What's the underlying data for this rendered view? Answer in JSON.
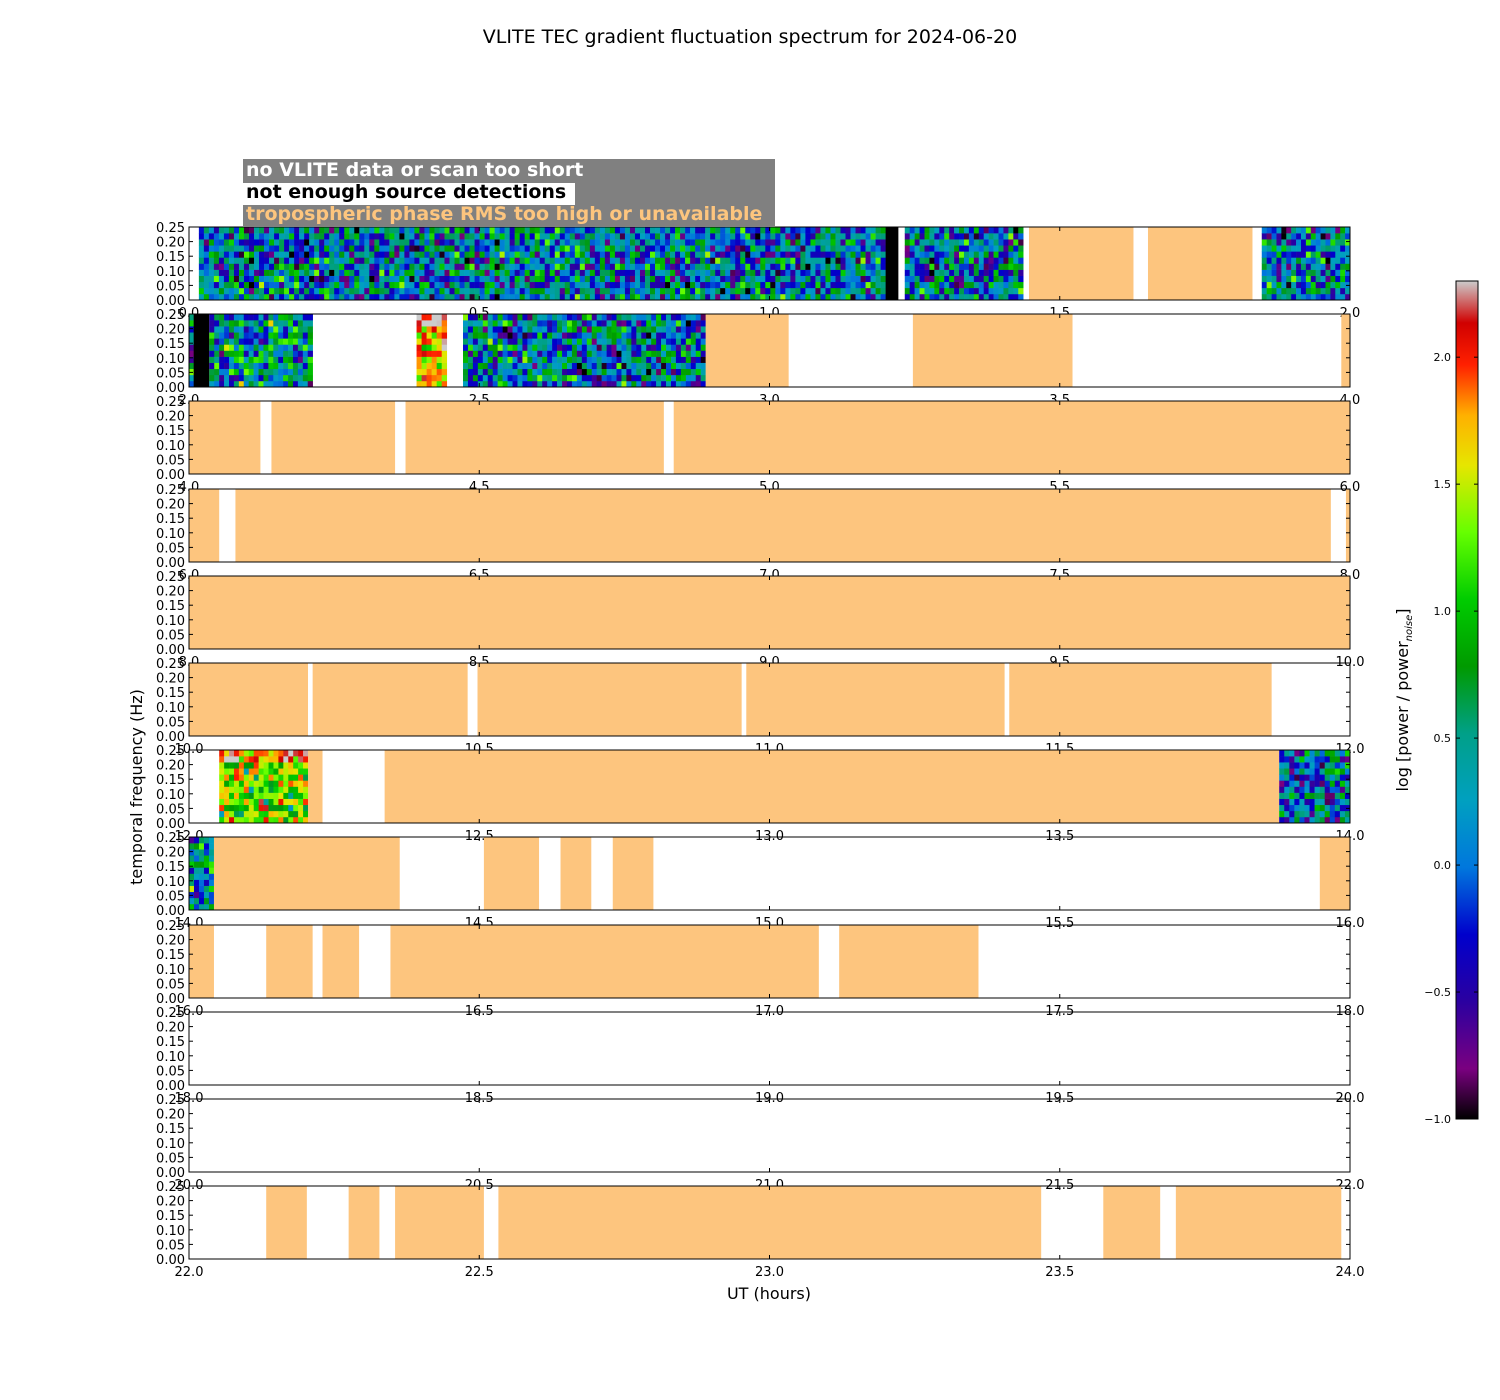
{
  "chart_data": {
    "type": "heatmap",
    "title": "VLITE TEC gradient fluctuation spectrum for 2024-06-20",
    "xlabel": "UT (hours)",
    "ylabel": "temporal frequency (Hz)",
    "ylim": [
      0,
      0.25
    ],
    "y_ticks": [
      "0.00",
      "0.05",
      "0.10",
      "0.15",
      "0.20",
      "0.25"
    ],
    "legend": {
      "placement": "top-left",
      "entries": [
        {
          "label": "no VLITE data or scan too short",
          "color": "#808080",
          "text_color": "#ffffff"
        },
        {
          "label": "not enough source detections",
          "color": "#000000",
          "text_color": "#000000"
        },
        {
          "label": "tropospheric phase RMS too high or unavailable",
          "color": "#fdc57e",
          "text_color": "#fdc57e"
        }
      ]
    },
    "colorbar": {
      "label": "log [power / power",
      "label_sub": "noise",
      "label_close": "]",
      "range": [
        -1.0,
        2.3
      ],
      "tick_values": [
        -1.0,
        -0.5,
        0.0,
        0.5,
        1.0,
        1.5,
        2.0
      ],
      "tick_labels": [
        "−1.0",
        "−0.5",
        "0.0",
        "0.5",
        "1.0",
        "1.5",
        "2.0"
      ],
      "colormap": "nipy_spectral"
    },
    "colors": {
      "tropo": "#fdc57e",
      "detections": "#000000",
      "nodata": "#ffffff"
    },
    "panels": [
      {
        "xlim": [
          0,
          2
        ],
        "xticks": [
          "0.0",
          "0.5",
          "1.0",
          "1.5",
          "2.0"
        ],
        "segments": [
          {
            "start": 0.017,
            "end": 1.2,
            "kind": "data",
            "level": 0.0
          },
          {
            "start": 1.2,
            "end": 1.222,
            "kind": "detections"
          },
          {
            "start": 1.233,
            "end": 1.437,
            "kind": "data",
            "level": 0.0
          },
          {
            "start": 1.447,
            "end": 1.627,
            "kind": "tropo"
          },
          {
            "start": 1.652,
            "end": 1.832,
            "kind": "tropo"
          },
          {
            "start": 1.848,
            "end": 2.0,
            "kind": "data",
            "level": 0.0
          }
        ]
      },
      {
        "xlim": [
          2,
          4
        ],
        "xticks": [
          "2.0",
          "2.5",
          "3.0",
          "3.5",
          "4.0"
        ],
        "segments": [
          {
            "start": 2.0,
            "end": 2.008,
            "kind": "data",
            "level": 0.0
          },
          {
            "start": 2.008,
            "end": 2.035,
            "kind": "detections"
          },
          {
            "start": 2.035,
            "end": 2.213,
            "kind": "data",
            "level": 0.25
          },
          {
            "start": 2.392,
            "end": 2.444,
            "kind": "data",
            "level": 1.4
          },
          {
            "start": 2.472,
            "end": 2.89,
            "kind": "data",
            "level": 0.0
          },
          {
            "start": 2.89,
            "end": 3.033,
            "kind": "tropo"
          },
          {
            "start": 3.247,
            "end": 3.522,
            "kind": "tropo"
          },
          {
            "start": 3.985,
            "end": 4.0,
            "kind": "tropo"
          }
        ]
      },
      {
        "xlim": [
          4,
          6
        ],
        "xticks": [
          "4.0",
          "4.5",
          "5.0",
          "5.5",
          "6.0"
        ],
        "segments": [
          {
            "start": 4.0,
            "end": 4.123,
            "kind": "tropo"
          },
          {
            "start": 4.142,
            "end": 4.355,
            "kind": "tropo"
          },
          {
            "start": 4.373,
            "end": 4.818,
            "kind": "tropo"
          },
          {
            "start": 4.835,
            "end": 6.0,
            "kind": "tropo"
          }
        ]
      },
      {
        "xlim": [
          6,
          8
        ],
        "xticks": [
          "6.0",
          "6.5",
          "7.0",
          "7.5",
          "8.0"
        ],
        "segments": [
          {
            "start": 6.0,
            "end": 6.052,
            "kind": "tropo"
          },
          {
            "start": 6.08,
            "end": 7.967,
            "kind": "tropo"
          },
          {
            "start": 7.993,
            "end": 8.0,
            "kind": "tropo"
          }
        ]
      },
      {
        "xlim": [
          8,
          10
        ],
        "xticks": [
          "8.0",
          "8.5",
          "9.0",
          "9.5",
          "10.0"
        ],
        "segments": [
          {
            "start": 8.0,
            "end": 10.0,
            "kind": "tropo"
          }
        ]
      },
      {
        "xlim": [
          10,
          12
        ],
        "xticks": [
          "10.0",
          "10.5",
          "11.0",
          "11.5",
          "12.0"
        ],
        "segments": [
          {
            "start": 10.0,
            "end": 10.205,
            "kind": "tropo"
          },
          {
            "start": 10.213,
            "end": 10.48,
            "kind": "tropo"
          },
          {
            "start": 10.497,
            "end": 10.952,
            "kind": "tropo"
          },
          {
            "start": 10.96,
            "end": 11.405,
            "kind": "tropo"
          },
          {
            "start": 11.413,
            "end": 11.865,
            "kind": "tropo"
          }
        ]
      },
      {
        "xlim": [
          12,
          14
        ],
        "xticks": [
          "12.0",
          "12.5",
          "13.0",
          "13.5",
          "14.0"
        ],
        "segments": [
          {
            "start": 12.052,
            "end": 12.205,
            "kind": "data",
            "level": 1.0
          },
          {
            "start": 12.205,
            "end": 12.23,
            "kind": "tropo"
          },
          {
            "start": 12.337,
            "end": 13.878,
            "kind": "tropo"
          },
          {
            "start": 13.878,
            "end": 14.0,
            "kind": "data",
            "level": 0.0
          }
        ]
      },
      {
        "xlim": [
          14,
          16
        ],
        "xticks": [
          "14.0",
          "14.5",
          "15.0",
          "15.5",
          "16.0"
        ],
        "segments": [
          {
            "start": 14.0,
            "end": 14.043,
            "kind": "data",
            "level": 0.1
          },
          {
            "start": 14.043,
            "end": 14.363,
            "kind": "tropo"
          },
          {
            "start": 14.508,
            "end": 14.603,
            "kind": "tropo"
          },
          {
            "start": 14.64,
            "end": 14.693,
            "kind": "tropo"
          },
          {
            "start": 14.73,
            "end": 14.8,
            "kind": "tropo"
          },
          {
            "start": 15.948,
            "end": 16.0,
            "kind": "tropo"
          }
        ]
      },
      {
        "xlim": [
          16,
          18
        ],
        "xticks": [
          "16.0",
          "16.5",
          "17.0",
          "17.5",
          "18.0"
        ],
        "segments": [
          {
            "start": 16.0,
            "end": 16.043,
            "kind": "tropo"
          },
          {
            "start": 16.133,
            "end": 16.213,
            "kind": "tropo"
          },
          {
            "start": 16.23,
            "end": 16.293,
            "kind": "tropo"
          },
          {
            "start": 16.347,
            "end": 17.085,
            "kind": "tropo"
          },
          {
            "start": 17.12,
            "end": 17.36,
            "kind": "tropo"
          }
        ]
      },
      {
        "xlim": [
          18,
          20
        ],
        "xticks": [
          "18.0",
          "18.5",
          "19.0",
          "19.5",
          "20.0"
        ],
        "segments": []
      },
      {
        "xlim": [
          20,
          22
        ],
        "xticks": [
          "20.0",
          "20.5",
          "21.0",
          "21.5",
          "22.0"
        ],
        "segments": []
      },
      {
        "xlim": [
          22,
          24
        ],
        "xticks": [
          "22.0",
          "22.5",
          "23.0",
          "23.5",
          "24.0"
        ],
        "segments": [
          {
            "start": 22.133,
            "end": 22.203,
            "kind": "tropo"
          },
          {
            "start": 22.275,
            "end": 22.328,
            "kind": "tropo"
          },
          {
            "start": 22.355,
            "end": 22.508,
            "kind": "tropo"
          },
          {
            "start": 22.533,
            "end": 23.468,
            "kind": "tropo"
          },
          {
            "start": 23.575,
            "end": 23.673,
            "kind": "tropo"
          },
          {
            "start": 23.7,
            "end": 23.985,
            "kind": "tropo"
          }
        ]
      }
    ]
  }
}
